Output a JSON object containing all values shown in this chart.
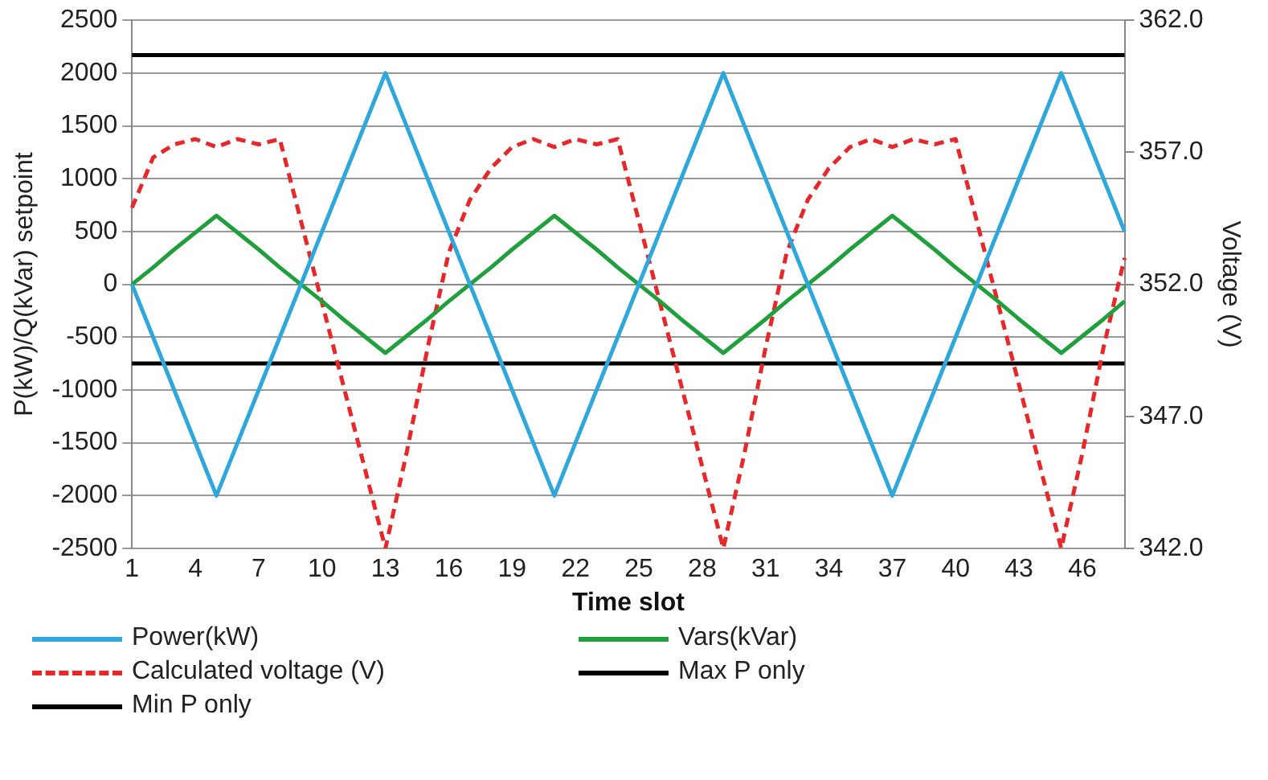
{
  "chart_data": {
    "type": "line",
    "xlabel": "Time slot",
    "ylabel": "P(kW)/Q(kVar) setpoint",
    "y2label": "Voltage (V)",
    "categories": [
      "1",
      null,
      null,
      "4",
      null,
      null,
      "7",
      null,
      null,
      "10",
      null,
      null,
      "13",
      null,
      null,
      "16",
      null,
      null,
      "19",
      null,
      null,
      "22",
      null,
      null,
      "25",
      null,
      null,
      "28",
      null,
      null,
      "31",
      null,
      null,
      "34",
      null,
      null,
      "37",
      null,
      null,
      "40",
      null,
      null,
      "43",
      null,
      null,
      "46",
      null,
      null
    ],
    "ylim": [
      -2500,
      2500
    ],
    "yticks": [
      -2500,
      -2000,
      -1500,
      -1000,
      -500,
      0,
      500,
      1000,
      1500,
      2000,
      2500
    ],
    "y2lim": [
      342,
      362
    ],
    "y2ticks": [
      {
        "value": 342,
        "label": "342.0"
      },
      {
        "value": 347,
        "label": "347.0"
      },
      {
        "value": 352,
        "label": "352.0"
      },
      {
        "value": 357,
        "label": "357.0"
      },
      {
        "value": 362,
        "label": "362.0"
      }
    ],
    "grid": "y",
    "legend": "bottom",
    "marker": "none",
    "series": [
      {
        "name": "Power(kW)",
        "color": "#2ea8dc",
        "values": [
          0,
          -500,
          -1000,
          -1500,
          -2000,
          -1500,
          -1000,
          -500,
          0,
          500,
          1000,
          1500,
          2000,
          1500,
          1000,
          500,
          0,
          -500,
          -1000,
          -1500,
          -2000,
          -1500,
          -1000,
          -500,
          0,
          500,
          1000,
          1500,
          2000,
          1500,
          1000,
          500,
          0,
          -500,
          -1000,
          -1500,
          -2000,
          -1500,
          -1000,
          -500,
          0,
          500,
          1000,
          1500,
          2000,
          1500,
          1000,
          500
        ]
      },
      {
        "name": "Vars(kVar)",
        "color": "#1fa03c",
        "values": [
          0,
          160,
          330,
          490,
          650,
          490,
          330,
          160,
          0,
          -160,
          -330,
          -490,
          -650,
          -490,
          -330,
          -160,
          0,
          160,
          330,
          490,
          650,
          490,
          330,
          160,
          0,
          -160,
          -330,
          -490,
          -650,
          -490,
          -330,
          -160,
          0,
          160,
          330,
          490,
          650,
          490,
          330,
          160,
          0,
          -160,
          -330,
          -490,
          -650,
          -490,
          -330,
          -160
        ]
      },
      {
        "name": "Calculated voltage (V)",
        "color": "#e8272a",
        "axis": "y2",
        "line_style": "dashed",
        "values": [
          354.9,
          356.8,
          357.3,
          357.5,
          357.2,
          357.5,
          357.3,
          357.5,
          354.4,
          351.3,
          348.2,
          345.1,
          342.0,
          345.6,
          349.6,
          353.2,
          355.2,
          356.4,
          357.2,
          357.5,
          357.2,
          357.5,
          357.3,
          357.5,
          354.4,
          351.3,
          348.2,
          345.1,
          342.0,
          345.6,
          349.6,
          353.2,
          355.2,
          356.4,
          357.2,
          357.5,
          357.2,
          357.5,
          357.3,
          357.5,
          354.4,
          351.3,
          348.2,
          345.1,
          342.0,
          345.6,
          349.6,
          353.0
        ]
      },
      {
        "name": "Max P only",
        "color": "#000000",
        "values": [
          2170,
          2170,
          2170,
          2170,
          2170,
          2170,
          2170,
          2170,
          2170,
          2170,
          2170,
          2170,
          2170,
          2170,
          2170,
          2170,
          2170,
          2170,
          2170,
          2170,
          2170,
          2170,
          2170,
          2170,
          2170,
          2170,
          2170,
          2170,
          2170,
          2170,
          2170,
          2170,
          2170,
          2170,
          2170,
          2170,
          2170,
          2170,
          2170,
          2170,
          2170,
          2170,
          2170,
          2170,
          2170,
          2170,
          2170,
          2170
        ]
      },
      {
        "name": "Min P only",
        "color": "#000000",
        "values": [
          -750,
          -750,
          -750,
          -750,
          -750,
          -750,
          -750,
          -750,
          -750,
          -750,
          -750,
          -750,
          -750,
          -750,
          -750,
          -750,
          -750,
          -750,
          -750,
          -750,
          -750,
          -750,
          -750,
          -750,
          -750,
          -750,
          -750,
          -750,
          -750,
          -750,
          -750,
          -750,
          -750,
          -750,
          -750,
          -750,
          -750,
          -750,
          -750,
          -750,
          -750,
          -750,
          -750,
          -750,
          -750,
          -750,
          -750,
          -750
        ]
      }
    ]
  }
}
